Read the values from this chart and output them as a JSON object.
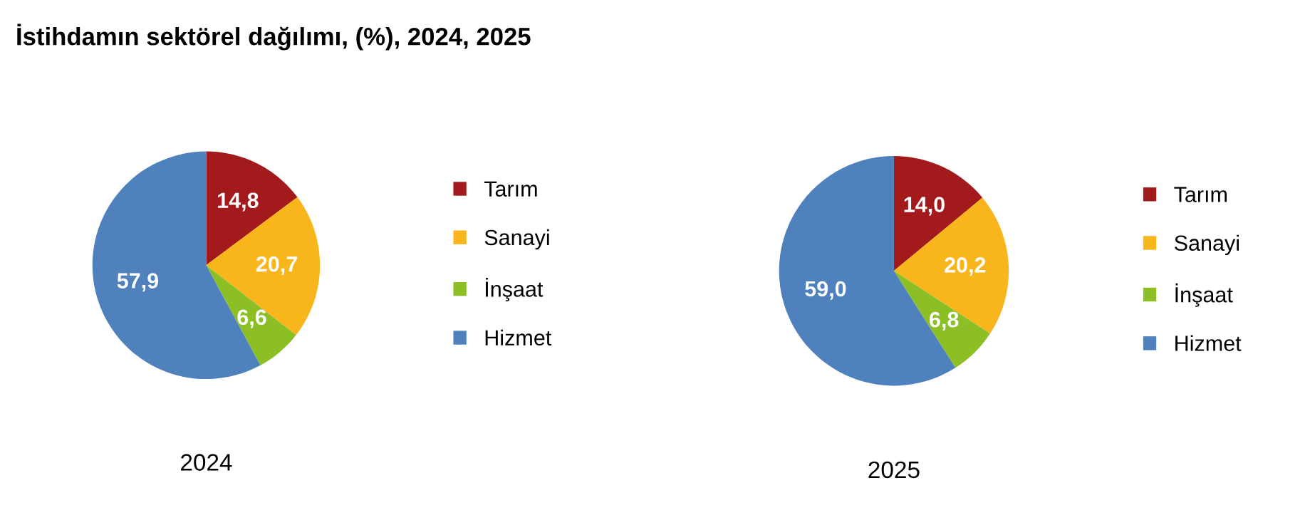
{
  "chart_data": [
    {
      "type": "pie",
      "title": "İstihdamın sektörel dağılımı, (%), 2024, 2025",
      "xlabel": "2024",
      "categories": [
        "Tarım",
        "Sanayi",
        "İnşaat",
        "Hizmet"
      ],
      "values": [
        14.8,
        20.7,
        6.6,
        57.9
      ],
      "value_labels": [
        "14,8",
        "20,7",
        "6,6",
        "57,9"
      ],
      "colors": [
        "#a31a1c",
        "#f9b51c",
        "#8cbf26",
        "#4f81bd"
      ],
      "legend": "right"
    },
    {
      "type": "pie",
      "xlabel": "2025",
      "categories": [
        "Tarım",
        "Sanayi",
        "İnşaat",
        "Hizmet"
      ],
      "values": [
        14.0,
        20.2,
        6.8,
        59.0
      ],
      "value_labels": [
        "14,0",
        "20,2",
        "6,8",
        "59,0"
      ],
      "colors": [
        "#a31a1c",
        "#f9b51c",
        "#8cbf26",
        "#4f81bd"
      ],
      "legend": "right"
    }
  ]
}
